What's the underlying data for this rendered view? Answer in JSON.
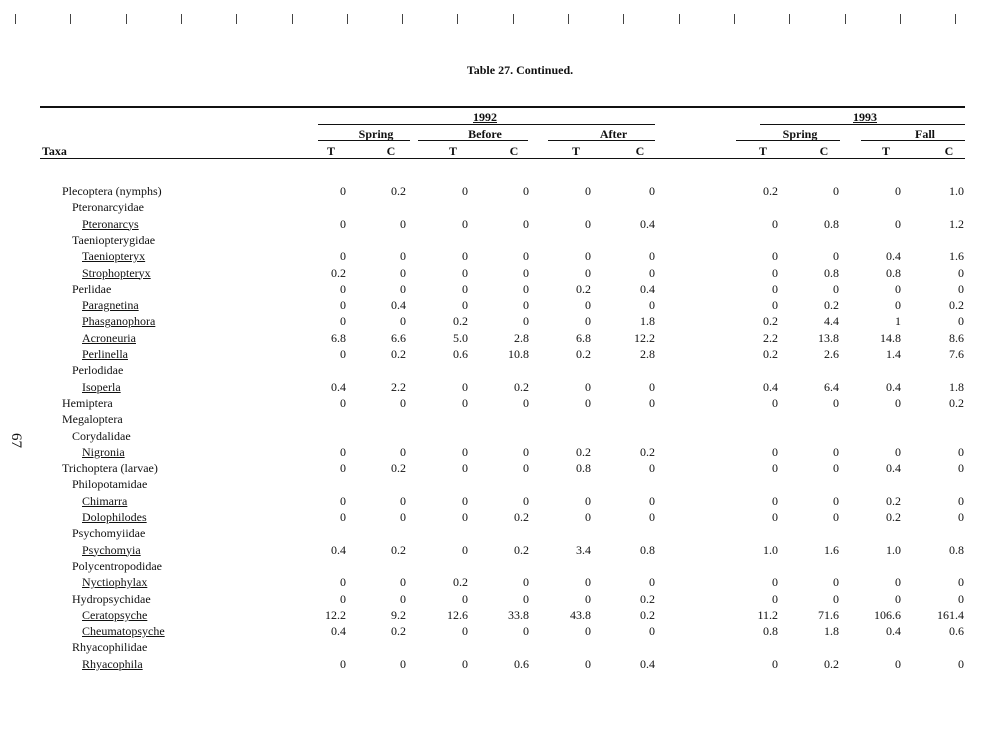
{
  "page_number": "67",
  "title": "Table 27.  Continued.",
  "header": {
    "taxa_label": "Taxa",
    "years": [
      "1992",
      "1993"
    ],
    "periods": [
      "Spring",
      "Before",
      "After",
      "Spring",
      "Fall"
    ],
    "columns": [
      "T",
      "C",
      "T",
      "C",
      "T",
      "C",
      "T",
      "C",
      "T",
      "C"
    ]
  },
  "rows": [
    {
      "name": "Plecoptera (nymphs)",
      "level": 0,
      "genus": false,
      "values": [
        "0",
        "0.2",
        "0",
        "0",
        "0",
        "0",
        "0.2",
        "0",
        "0",
        "1.0"
      ]
    },
    {
      "name": "Pteronarcyidae",
      "level": 1,
      "genus": false,
      "values": null
    },
    {
      "name": "Pteronarcys",
      "level": 2,
      "genus": true,
      "values": [
        "0",
        "0",
        "0",
        "0",
        "0",
        "0.4",
        "0",
        "0.8",
        "0",
        "1.2"
      ]
    },
    {
      "name": "Taeniopterygidae",
      "level": 1,
      "genus": false,
      "values": null
    },
    {
      "name": "Taeniopteryx",
      "level": 2,
      "genus": true,
      "values": [
        "0",
        "0",
        "0",
        "0",
        "0",
        "0",
        "0",
        "0",
        "0.4",
        "1.6"
      ]
    },
    {
      "name": "Strophopteryx",
      "level": 2,
      "genus": true,
      "values": [
        "0.2",
        "0",
        "0",
        "0",
        "0",
        "0",
        "0",
        "0.8",
        "0.8",
        "0"
      ]
    },
    {
      "name": "Perlidae",
      "level": 1,
      "genus": false,
      "values": [
        "0",
        "0",
        "0",
        "0",
        "0.2",
        "0.4",
        "0",
        "0",
        "0",
        "0"
      ]
    },
    {
      "name": "Paragnetina",
      "level": 2,
      "genus": true,
      "values": [
        "0",
        "0.4",
        "0",
        "0",
        "0",
        "0",
        "0",
        "0.2",
        "0",
        "0.2"
      ]
    },
    {
      "name": "Phasganophora",
      "level": 2,
      "genus": true,
      "values": [
        "0",
        "0",
        "0.2",
        "0",
        "0",
        "1.8",
        "0.2",
        "4.4",
        "1",
        "0"
      ]
    },
    {
      "name": "Acroneuria",
      "level": 2,
      "genus": true,
      "values": [
        "6.8",
        "6.6",
        "5.0",
        "2.8",
        "6.8",
        "12.2",
        "2.2",
        "13.8",
        "14.8",
        "8.6"
      ]
    },
    {
      "name": "Perlinella",
      "level": 2,
      "genus": true,
      "values": [
        "0",
        "0.2",
        "0.6",
        "10.8",
        "0.2",
        "2.8",
        "0.2",
        "2.6",
        "1.4",
        "7.6"
      ]
    },
    {
      "name": "Perlodidae",
      "level": 1,
      "genus": false,
      "values": null
    },
    {
      "name": "Isoperla",
      "level": 2,
      "genus": true,
      "values": [
        "0.4",
        "2.2",
        "0",
        "0.2",
        "0",
        "0",
        "0.4",
        "6.4",
        "0.4",
        "1.8"
      ]
    },
    {
      "name": "Hemiptera",
      "level": 0,
      "genus": false,
      "values": [
        "0",
        "0",
        "0",
        "0",
        "0",
        "0",
        "0",
        "0",
        "0",
        "0.2"
      ]
    },
    {
      "name": "Megaloptera",
      "level": 0,
      "genus": false,
      "values": null
    },
    {
      "name": "Corydalidae",
      "level": 1,
      "genus": false,
      "values": null
    },
    {
      "name": "Nigronia",
      "level": 2,
      "genus": true,
      "values": [
        "0",
        "0",
        "0",
        "0",
        "0.2",
        "0.2",
        "0",
        "0",
        "0",
        "0"
      ]
    },
    {
      "name": "Trichoptera (larvae)",
      "level": 0,
      "genus": false,
      "values": [
        "0",
        "0.2",
        "0",
        "0",
        "0.8",
        "0",
        "0",
        "0",
        "0.4",
        "0"
      ]
    },
    {
      "name": "Philopotamidae",
      "level": 1,
      "genus": false,
      "values": null
    },
    {
      "name": "Chimarra",
      "level": 2,
      "genus": true,
      "values": [
        "0",
        "0",
        "0",
        "0",
        "0",
        "0",
        "0",
        "0",
        "0.2",
        "0"
      ]
    },
    {
      "name": "Dolophilodes",
      "level": 2,
      "genus": true,
      "values": [
        "0",
        "0",
        "0",
        "0.2",
        "0",
        "0",
        "0",
        "0",
        "0.2",
        "0"
      ]
    },
    {
      "name": "Psychomyiidae",
      "level": 1,
      "genus": false,
      "values": null
    },
    {
      "name": "Psychomyia",
      "level": 2,
      "genus": true,
      "values": [
        "0.4",
        "0.2",
        "0",
        "0.2",
        "3.4",
        "0.8",
        "1.0",
        "1.6",
        "1.0",
        "0.8"
      ]
    },
    {
      "name": "Polycentropodidae",
      "level": 1,
      "genus": false,
      "values": null
    },
    {
      "name": "Nyctiophylax",
      "level": 2,
      "genus": true,
      "values": [
        "0",
        "0",
        "0.2",
        "0",
        "0",
        "0",
        "0",
        "0",
        "0",
        "0"
      ]
    },
    {
      "name": "Hydropsychidae",
      "level": 1,
      "genus": false,
      "values": [
        "0",
        "0",
        "0",
        "0",
        "0",
        "0.2",
        "0",
        "0",
        "0",
        "0"
      ]
    },
    {
      "name": "Ceratopsyche",
      "level": 2,
      "genus": true,
      "values": [
        "12.2",
        "9.2",
        "12.6",
        "33.8",
        "43.8",
        "0.2",
        "11.2",
        "71.6",
        "106.6",
        "161.4"
      ]
    },
    {
      "name": "Cheumatopsyche",
      "level": 2,
      "genus": true,
      "values": [
        "0.4",
        "0.2",
        "0",
        "0",
        "0",
        "0",
        "0.8",
        "1.8",
        "0.4",
        "0.6"
      ]
    },
    {
      "name": "Rhyacophilidae",
      "level": 1,
      "genus": false,
      "values": null
    },
    {
      "name": "Rhyacophila",
      "level": 2,
      "genus": true,
      "values": [
        "0",
        "0",
        "0",
        "0.6",
        "0",
        "0.4",
        "0",
        "0.2",
        "0",
        "0"
      ]
    }
  ]
}
